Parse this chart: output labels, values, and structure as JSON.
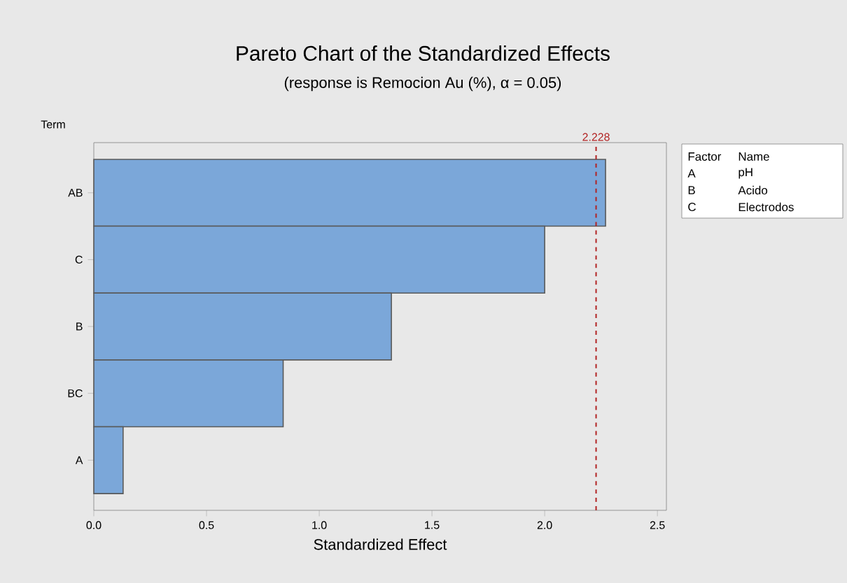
{
  "chart_data": {
    "type": "bar",
    "orientation": "horizontal",
    "title": "Pareto Chart of the Standardized Effects",
    "subtitle": "(response is Remocion Au (%), α = 0.05)",
    "xlabel": "Standardized Effect",
    "ylabel": "Term",
    "categories": [
      "AB",
      "C",
      "B",
      "BC",
      "A"
    ],
    "values": [
      2.27,
      2.0,
      1.32,
      0.84,
      0.13
    ],
    "color": "#7ba7d9",
    "xlim": [
      0,
      2.54
    ],
    "xticks": [
      {
        "value": 0,
        "label": "0.0"
      },
      0.5,
      {
        "value": 1,
        "label": "1.0"
      },
      1.5,
      {
        "value": 2,
        "label": "2.0"
      },
      2.5
    ],
    "ref_lines": [
      {
        "axis": "x",
        "value": 2.228,
        "label": "2.228",
        "color": "#b22222",
        "line_style": "dashed"
      }
    ],
    "annotations": [
      "Factor",
      "Name",
      "A",
      "pH",
      "B",
      "Acido",
      "C",
      "Electrodos"
    ]
  }
}
